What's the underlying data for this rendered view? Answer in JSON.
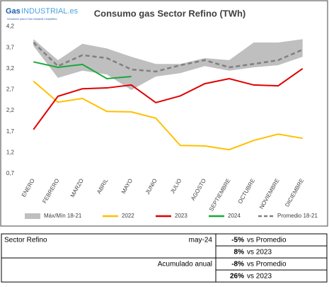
{
  "logo": {
    "brand": "Gas",
    "name": "INDUSTRIAL.es",
    "tagline": "Innovación para el Gas Industrial Competitivo"
  },
  "chart_data": {
    "type": "line",
    "title": "Consumo gas Sector Refino (TWh)",
    "categories": [
      "ENERO",
      "FEBRERO",
      "MARZO",
      "ABRIL",
      "MAYO",
      "JUNIO",
      "JULIO",
      "AGOSTO",
      "SEPTIEMBRE",
      "OCTUBRE",
      "NOVIEMBRE",
      "DICIEMBRE"
    ],
    "ylim": [
      0.7,
      4.2
    ],
    "yticks": [
      {
        "value": 0.7,
        "label": "0,7"
      },
      {
        "value": 1.2,
        "label": "1,2"
      },
      {
        "value": 1.7,
        "label": "1,7"
      },
      {
        "value": 2.2,
        "label": "2,2"
      },
      {
        "value": 2.7,
        "label": "2,7"
      },
      {
        "value": 3.2,
        "label": "3,2"
      },
      {
        "value": 3.7,
        "label": "3,7"
      },
      {
        "value": 4.2,
        "label": "4,2"
      }
    ],
    "grid": false,
    "legend": "bottom",
    "series": [
      {
        "name": "Máx/Mín 18-21",
        "color": "#bfbfbf",
        "kind": "band",
        "max": [
          3.9,
          3.4,
          3.79,
          3.68,
          3.48,
          3.31,
          3.31,
          3.45,
          3.4,
          3.82,
          3.82,
          3.9
        ],
        "min": [
          3.74,
          2.98,
          3.15,
          3.06,
          2.69,
          3.01,
          3.09,
          3.26,
          3.15,
          3.23,
          3.28,
          3.48
        ]
      },
      {
        "name": "2022",
        "color": "#ffc000",
        "values": [
          2.9,
          2.4,
          2.49,
          2.18,
          2.17,
          2.02,
          1.37,
          1.36,
          1.27,
          1.49,
          1.64,
          1.54
        ]
      },
      {
        "name": "2023",
        "color": "#e00000",
        "values": [
          1.75,
          2.54,
          2.72,
          2.74,
          2.81,
          2.39,
          2.55,
          2.84,
          2.96,
          2.81,
          2.79,
          3.2
        ]
      },
      {
        "name": "2024",
        "color": "#1aa83a",
        "values": [
          3.36,
          3.23,
          3.3,
          2.96,
          3.01,
          null,
          null,
          null,
          null,
          null,
          null,
          null
        ]
      },
      {
        "name": "Promedio 18-21",
        "color": "#808080",
        "dash": true,
        "values": [
          3.82,
          3.26,
          3.52,
          3.45,
          3.18,
          3.13,
          3.28,
          3.4,
          3.23,
          3.31,
          3.4,
          3.65
        ]
      }
    ]
  },
  "table": {
    "rows": [
      [
        "Sector Refino",
        "may-24",
        [
          [
            "-5%",
            "vs Promedio"
          ],
          [
            "8%",
            "vs 2023"
          ]
        ]
      ],
      [
        "Acumulado anual",
        [
          [
            "-8%",
            "vs Promedio"
          ],
          [
            "26%",
            "vs 2023"
          ]
        ]
      ]
    ]
  }
}
